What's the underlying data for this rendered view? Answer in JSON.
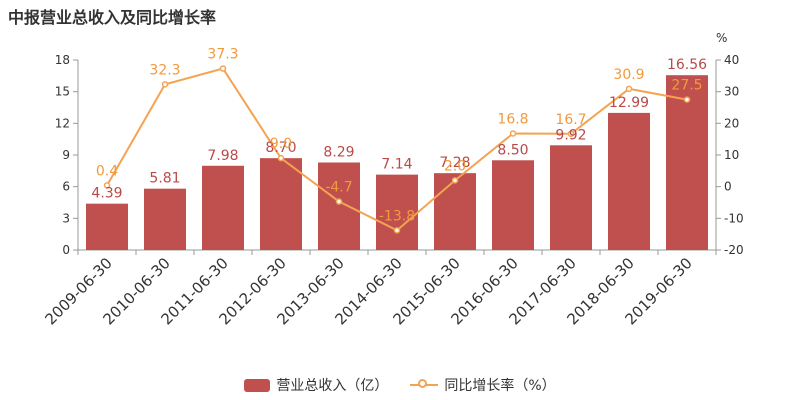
{
  "title": "中报营业总收入及同比增长率",
  "colors": {
    "bar": "#c0504d",
    "line": "#f4a352",
    "axis": "#999999",
    "text": "#333333",
    "bar_label": "#b94a48",
    "line_label": "#f19a3d"
  },
  "chart_data": {
    "type": "bar",
    "categories": [
      "2009-06-30",
      "2010-06-30",
      "2011-06-30",
      "2012-06-30",
      "2013-06-30",
      "2014-06-30",
      "2015-06-30",
      "2016-06-30",
      "2017-06-30",
      "2018-06-30",
      "2019-06-30"
    ],
    "series": [
      {
        "name": "营业总收入（亿）",
        "type": "bar",
        "axis": "left",
        "values": [
          4.39,
          5.81,
          7.98,
          8.7,
          8.29,
          7.14,
          7.28,
          8.5,
          9.92,
          12.99,
          16.56
        ],
        "labels": [
          "4.39",
          "5.81",
          "7.98",
          "8.70",
          "8.29",
          "7.14",
          "7.28",
          "8.50",
          "9.92",
          "12.99",
          "16.56"
        ]
      },
      {
        "name": "同比增长率（%）",
        "type": "line",
        "axis": "right",
        "values": [
          0.4,
          32.3,
          37.3,
          9.0,
          -4.7,
          -13.8,
          2.0,
          16.8,
          16.7,
          30.9,
          27.5
        ],
        "labels": [
          "0.4",
          "32.3",
          "37.3",
          "9.0",
          "-4.7",
          "-13.8",
          "2.0",
          "16.8",
          "16.7",
          "30.9",
          "27.5"
        ]
      }
    ],
    "left_axis": {
      "ylim": [
        0,
        18
      ],
      "ticks": [
        "0",
        "3",
        "6",
        "9",
        "12",
        "15",
        "18"
      ]
    },
    "right_axis": {
      "ylim": [
        -20,
        40
      ],
      "ticks": [
        "-20",
        "-10",
        "0",
        "10",
        "20",
        "30",
        "40"
      ],
      "unit": "%"
    },
    "legend": {
      "position": "bottom",
      "items": [
        "营业总收入（亿）",
        "同比增长率（%）"
      ]
    },
    "grid": false
  }
}
